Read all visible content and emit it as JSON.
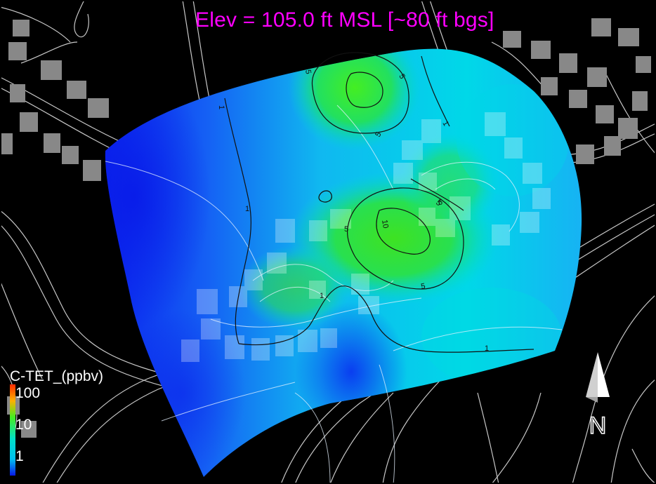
{
  "map": {
    "title": "Elev = 105.0 ft MSL [~80 ft bgs]",
    "colors": {
      "background": "#000000",
      "title": "#ff00ff",
      "low": "#0a22ee",
      "mid": "#00e4e4",
      "high": "#33ee22",
      "max": "#ff6a00",
      "roads": "#cccccc",
      "contours": "#111111",
      "buildings": "#8a8a8a"
    },
    "contour_labels": [
      "5",
      "5",
      "5",
      "1",
      "5",
      "5",
      "10",
      "5",
      "1",
      "1",
      "1",
      "1",
      "5"
    ]
  },
  "legend": {
    "title": "C-TET_(ppbv)",
    "ticks": [
      "100",
      "10",
      "1"
    ]
  },
  "north_arrow": {
    "label": "N",
    "icon": "north-arrow-icon"
  }
}
